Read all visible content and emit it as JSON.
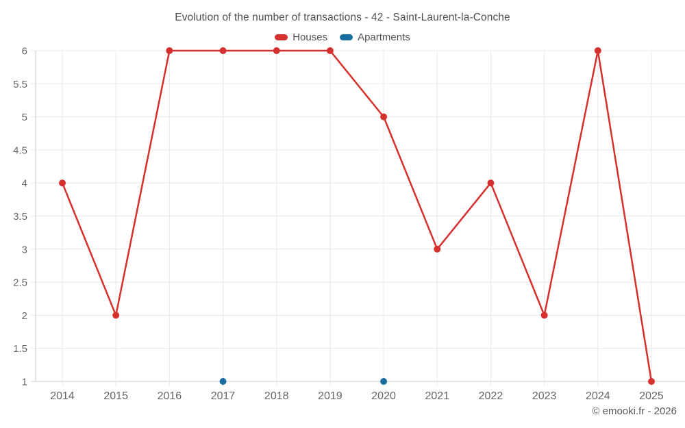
{
  "chart": {
    "title": "Evolution of the number of transactions - 42 - Saint-Laurent-la-Conche"
  },
  "legend": [
    {
      "label": "Houses",
      "color": "#d5302e",
      "swatch_icon": "series-swatch-red"
    },
    {
      "label": "Apartments",
      "color": "#186f9f",
      "swatch_icon": "series-swatch-blue"
    }
  ],
  "watermark": "© emooki.fr - 2026",
  "colors": {
    "grid": "#e9e9e9",
    "axis": "#c9c9c9",
    "tick_label": "#666666",
    "title_text": "#4f4f4f",
    "houses": "#d5302e",
    "apartments": "#186f9f"
  },
  "chart_data": {
    "type": "line",
    "title": "Evolution of the number of transactions - 42 - Saint-Laurent-la-Conche",
    "categories": [
      "2014",
      "2015",
      "2016",
      "2017",
      "2018",
      "2019",
      "2020",
      "2021",
      "2022",
      "2023",
      "2024",
      "2025"
    ],
    "series": [
      {
        "name": "Houses",
        "color": "#d5302e",
        "values": [
          4,
          2,
          6,
          6,
          6,
          6,
          5,
          3,
          4,
          2,
          6,
          1
        ]
      },
      {
        "name": "Apartments",
        "color": "#186f9f",
        "values": [
          null,
          null,
          null,
          1,
          null,
          null,
          1,
          null,
          null,
          null,
          null,
          null
        ]
      }
    ],
    "xlabel": "",
    "ylabel": "",
    "ylim": [
      1,
      6
    ],
    "ytick_step": 0.5,
    "grid": true,
    "legend_position": "top"
  }
}
